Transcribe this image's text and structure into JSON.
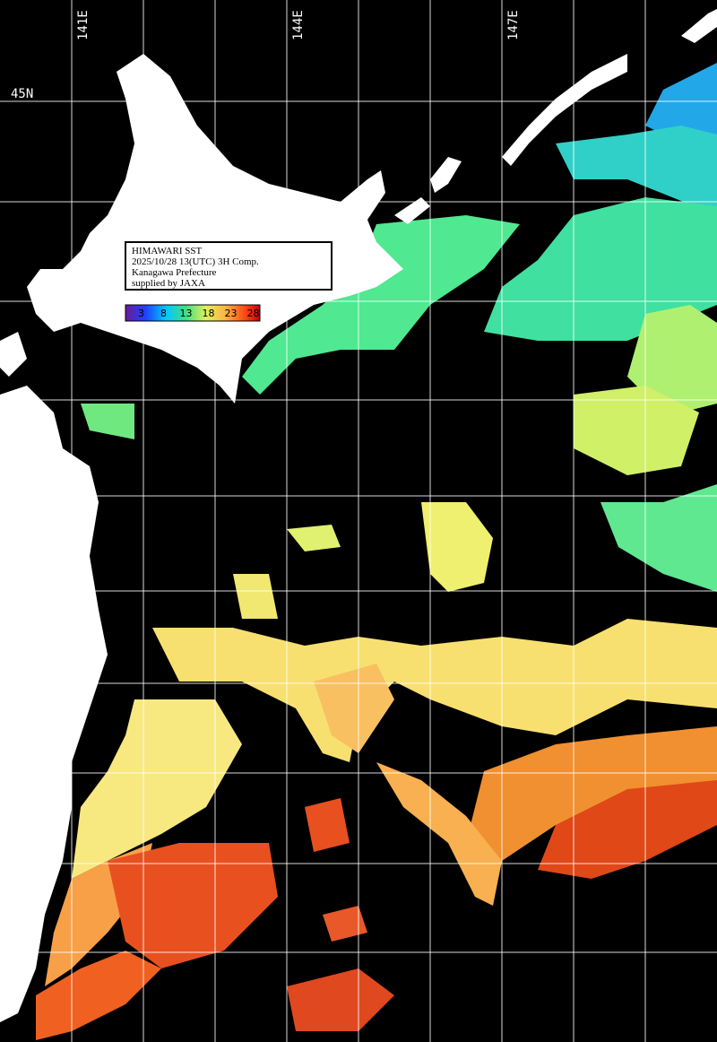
{
  "map": {
    "grid_labels": {
      "lon": [
        "141E",
        "144E",
        "147E"
      ],
      "lat": [
        "45N"
      ]
    },
    "info": [
      "HIMAWARI SST",
      "2025/10/28 13(UTC) 3H Comp.",
      "Kanagawa Prefecture",
      "supplied by JAXA"
    ],
    "colorbar": {
      "ticks": [
        3,
        8,
        13,
        18,
        23,
        28
      ]
    }
  }
}
